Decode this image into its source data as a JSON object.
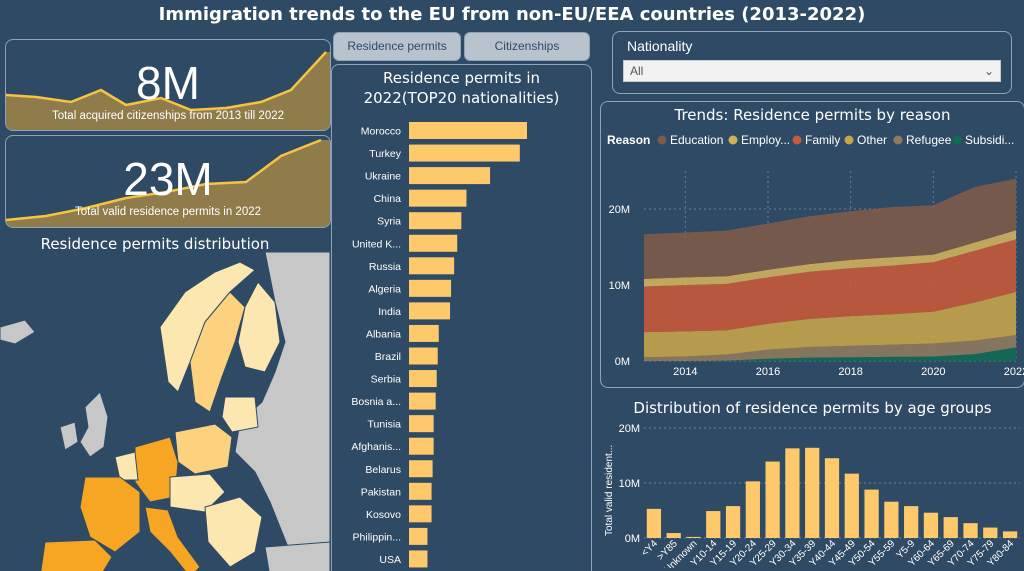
{
  "title": "Immigration trends to the EU from non-EU/EEA countries (2013-2022)",
  "kpis": [
    {
      "value": "8M",
      "label": "Total acquired citizenships from 2013 till 2022"
    },
    {
      "value": "23M",
      "label": "Total valid residence permits in 2022"
    }
  ],
  "tabs": [
    "Residence permits",
    "Citizenships"
  ],
  "filter": {
    "label": "Nationality",
    "selected": "All"
  },
  "map": {
    "title": "Residence permits distribution"
  },
  "colors": {
    "bar": "#fdc96b",
    "map_high": "#f6a623",
    "map_mid": "#fdd27f",
    "map_low": "#fde7b0",
    "map_none": "#c7c7c7",
    "sea": "#2f4a64"
  },
  "chart_data": [
    {
      "type": "bar",
      "title": "Residence permits in 2022(TOP20 nationalities)",
      "orientation": "horizontal",
      "categories": [
        "Morocco",
        "Turkey",
        "Ukraine",
        "China",
        "Syria",
        "United K...",
        "Russia",
        "Algeria",
        "India",
        "Albania",
        "Brazil",
        "Serbia",
        "Bosnia a...",
        "Tunisia",
        "Afghanis...",
        "Belarus",
        "Pakistan",
        "Kosovo",
        "Philippin...",
        "USA"
      ],
      "values": [
        1150000,
        1080000,
        790000,
        560000,
        510000,
        470000,
        440000,
        410000,
        400000,
        290000,
        280000,
        270000,
        260000,
        240000,
        240000,
        230000,
        220000,
        220000,
        180000,
        180000
      ]
    },
    {
      "type": "area",
      "title": "Trends: Residence permits by reason",
      "legend_title": "Reason",
      "x": [
        2013,
        2014,
        2015,
        2016,
        2017,
        2018,
        2019,
        2020,
        2021,
        2022
      ],
      "x_ticks": [
        "2014",
        "2016",
        "2018",
        "2020",
        "2022"
      ],
      "y_ticks": [
        "0M",
        "10M",
        "20M"
      ],
      "ylim": [
        0,
        25000000
      ],
      "stacked": true,
      "series": [
        {
          "name": "Subsidi...",
          "color": "#0f6b52",
          "values": [
            0,
            0,
            50000,
            300000,
            450000,
            500000,
            550000,
            600000,
            900000,
            1800000
          ]
        },
        {
          "name": "Refugee",
          "color": "#8f7a5e",
          "values": [
            500000,
            600000,
            800000,
            1200000,
            1400000,
            1500000,
            1600000,
            1700000,
            1800000,
            1600000
          ]
        },
        {
          "name": "Other",
          "color": "#c6a44a",
          "values": [
            3300000,
            3300000,
            3200000,
            3400000,
            3700000,
            3900000,
            4000000,
            4200000,
            5000000,
            5700000
          ]
        },
        {
          "name": "Family",
          "color": "#c75a3a",
          "values": [
            6000000,
            6100000,
            6100000,
            6100000,
            6200000,
            6300000,
            6400000,
            6500000,
            6800000,
            6900000
          ]
        },
        {
          "name": "Employ...",
          "color": "#d1b15c",
          "values": [
            1000000,
            1000000,
            1000000,
            1000000,
            1000000,
            1100000,
            1100000,
            1000000,
            1100000,
            1200000
          ]
        },
        {
          "name": "Education",
          "color": "#7d5b4a",
          "values": [
            5900000,
            5900000,
            6000000,
            6100000,
            6300000,
            6400000,
            6600000,
            6500000,
            7300000,
            6800000
          ]
        }
      ]
    },
    {
      "type": "bar",
      "title": "Distribution of residence permits by age groups",
      "ylabel": "Total valid resident...",
      "y_ticks": [
        "0M",
        "10M",
        "20M"
      ],
      "ylim": [
        0,
        20000000
      ],
      "categories": [
        "<Y4",
        ">Y85",
        "Unknown",
        "Y10-14",
        "Y15-19",
        "Y20-24",
        "Y25-29",
        "Y30-34",
        "Y35-39",
        "Y40-44",
        "Y45-49",
        "Y50-54",
        "Y55-59",
        "Y5-9",
        "Y60-64",
        "Y65-69",
        "Y70-74",
        "Y75-79",
        "Y80-84"
      ],
      "values": [
        5300000,
        900000,
        200000,
        4900000,
        5800000,
        10300000,
        13900000,
        16300000,
        16400000,
        14500000,
        11700000,
        8800000,
        6600000,
        5800000,
        4600000,
        3800000,
        2700000,
        1900000,
        1200000
      ]
    }
  ]
}
